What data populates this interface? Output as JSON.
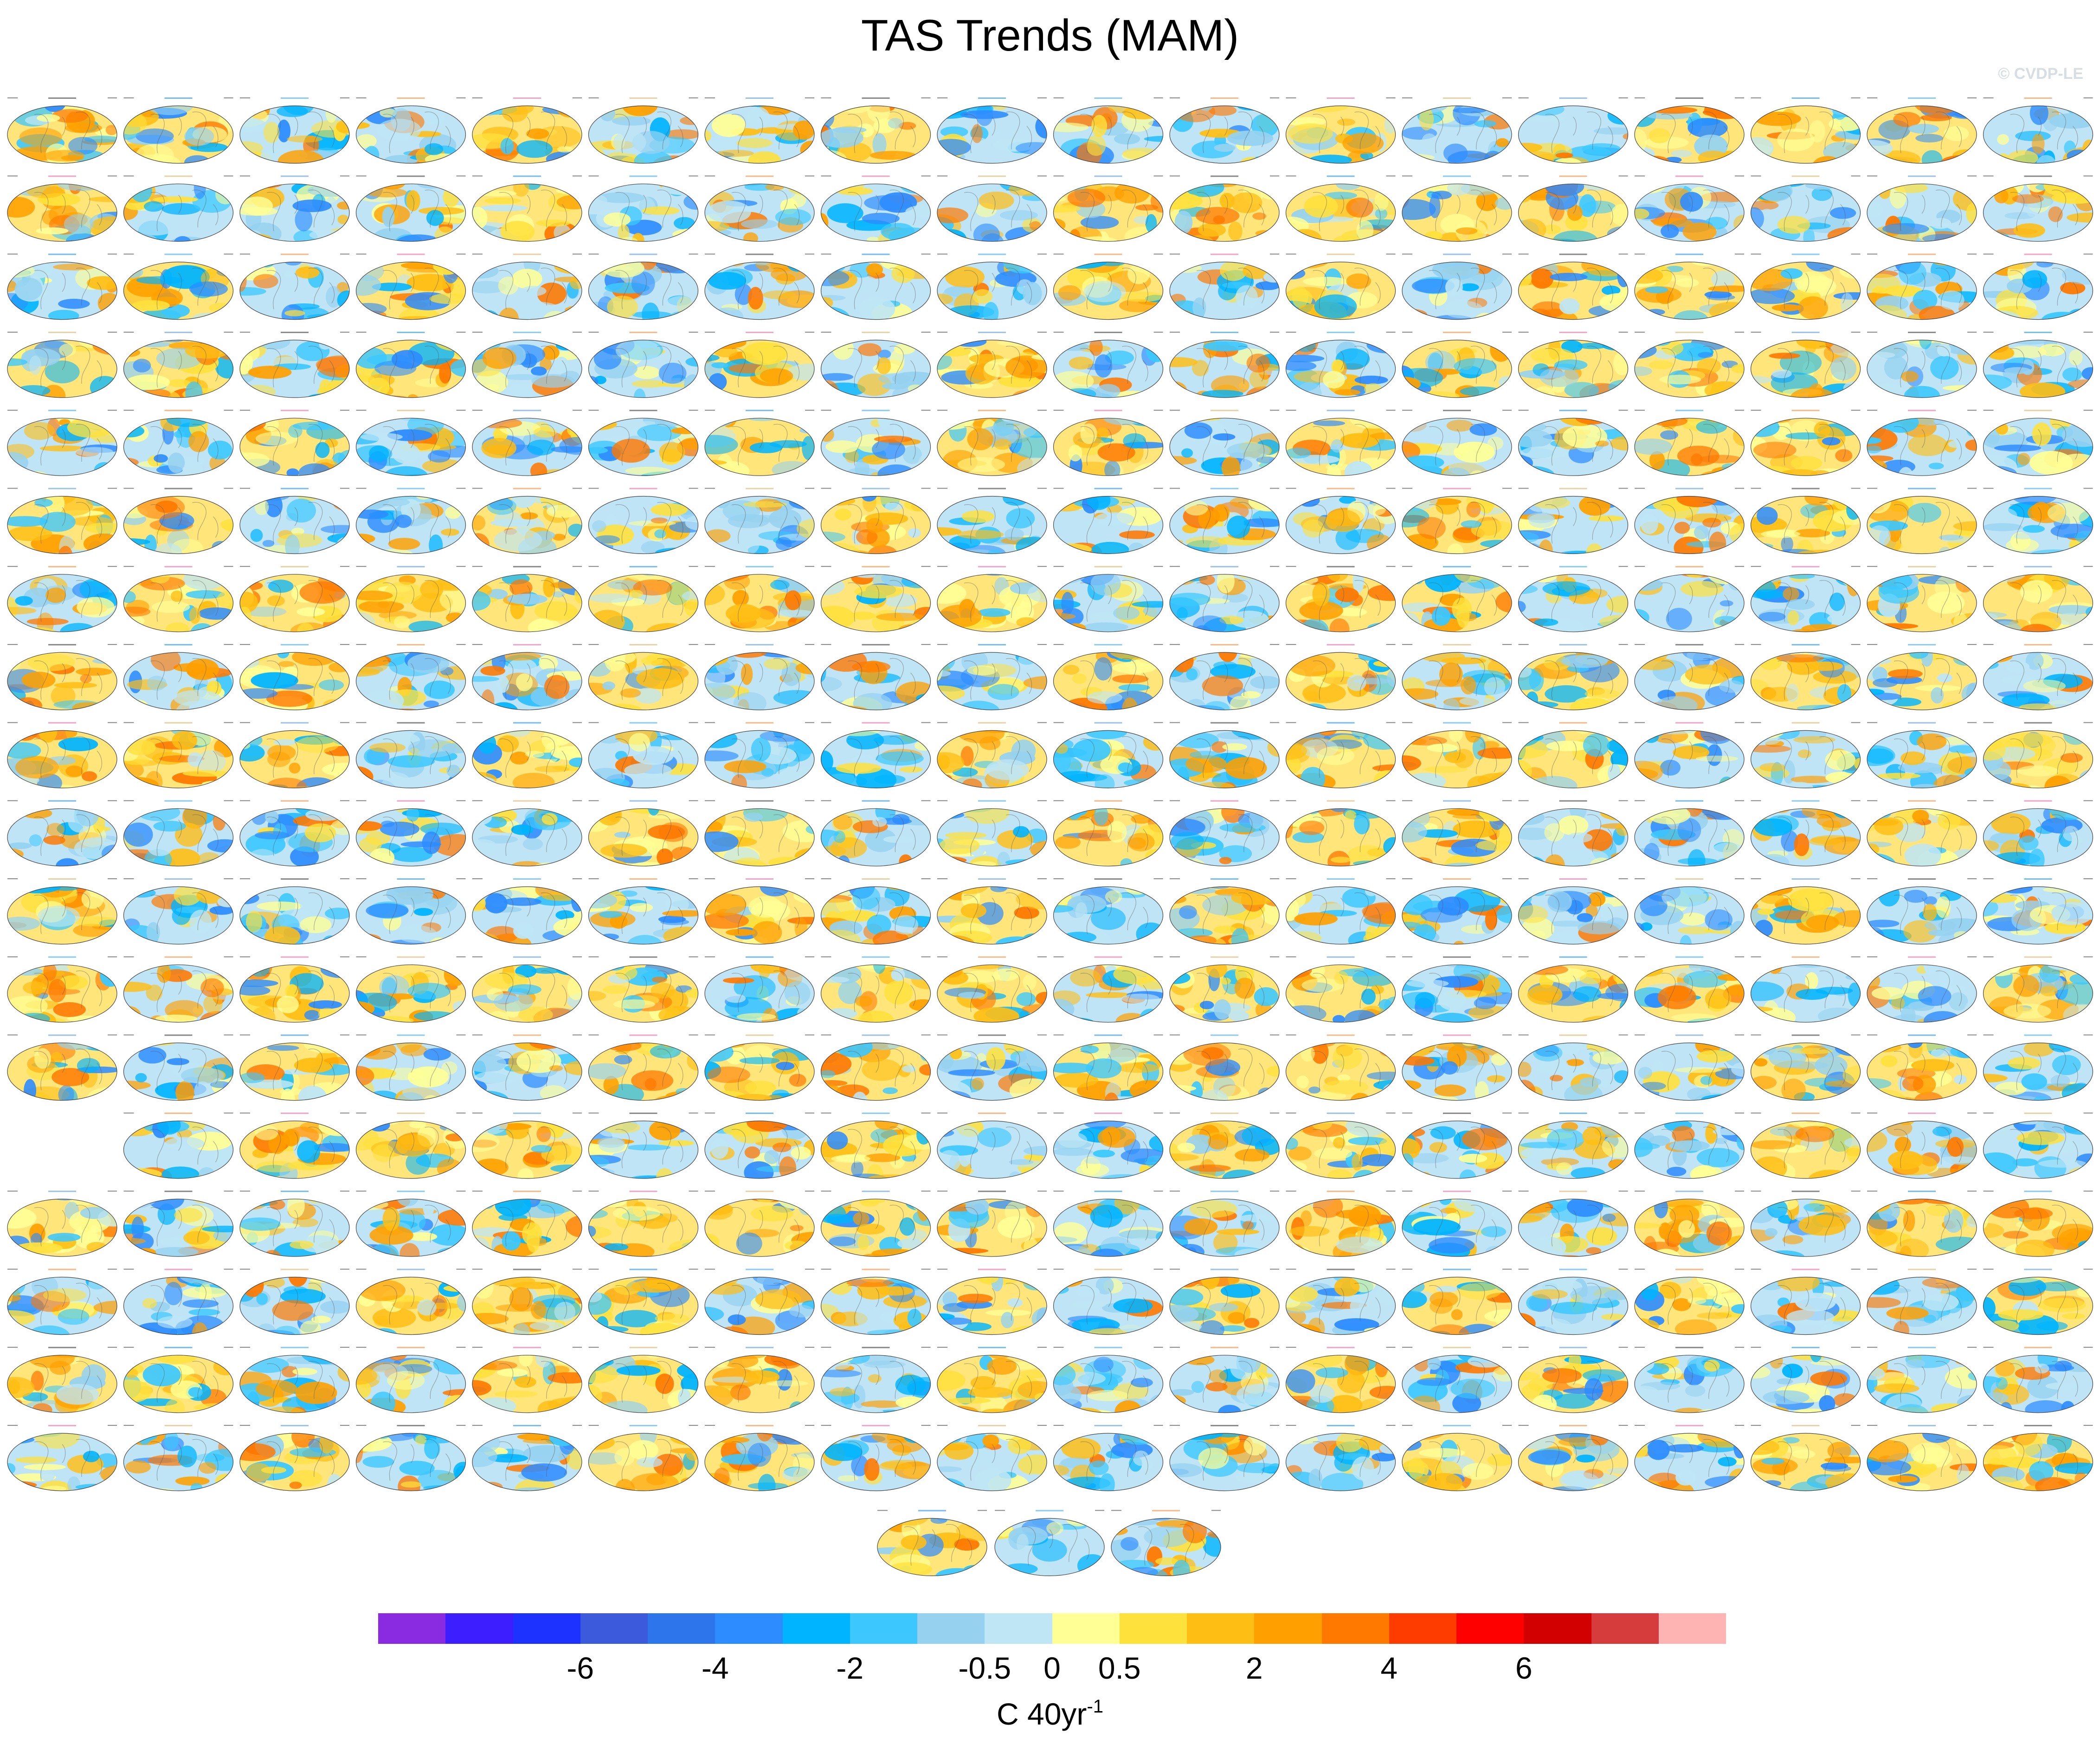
{
  "chart_data": {
    "type": "heatmap",
    "title": "TAS Trends (MAM)",
    "watermark": "© CVDP-LE",
    "projection": "global map panels",
    "panel_count": 327,
    "rows": 19,
    "columns": 18,
    "colorbar": {
      "colors": [
        "#8a2be2",
        "#3d1eff",
        "#1e32ff",
        "#3c5adc",
        "#2d75eb",
        "#2d8cff",
        "#00b4ff",
        "#3cc8ff",
        "#96d2f0",
        "#bee6f5",
        "#ffff96",
        "#ffe13c",
        "#ffbe14",
        "#ffa000",
        "#ff7800",
        "#ff3c00",
        "#ff0000",
        "#d20000",
        "#d73c3c",
        "#ffb4b4"
      ],
      "tick_labels": [
        "-6",
        "-4",
        "-2",
        "-0.5",
        "0",
        "0.5",
        "2",
        "4",
        "6"
      ],
      "units_prefix": "C 40yr",
      "units_exponent": "-1"
    }
  }
}
